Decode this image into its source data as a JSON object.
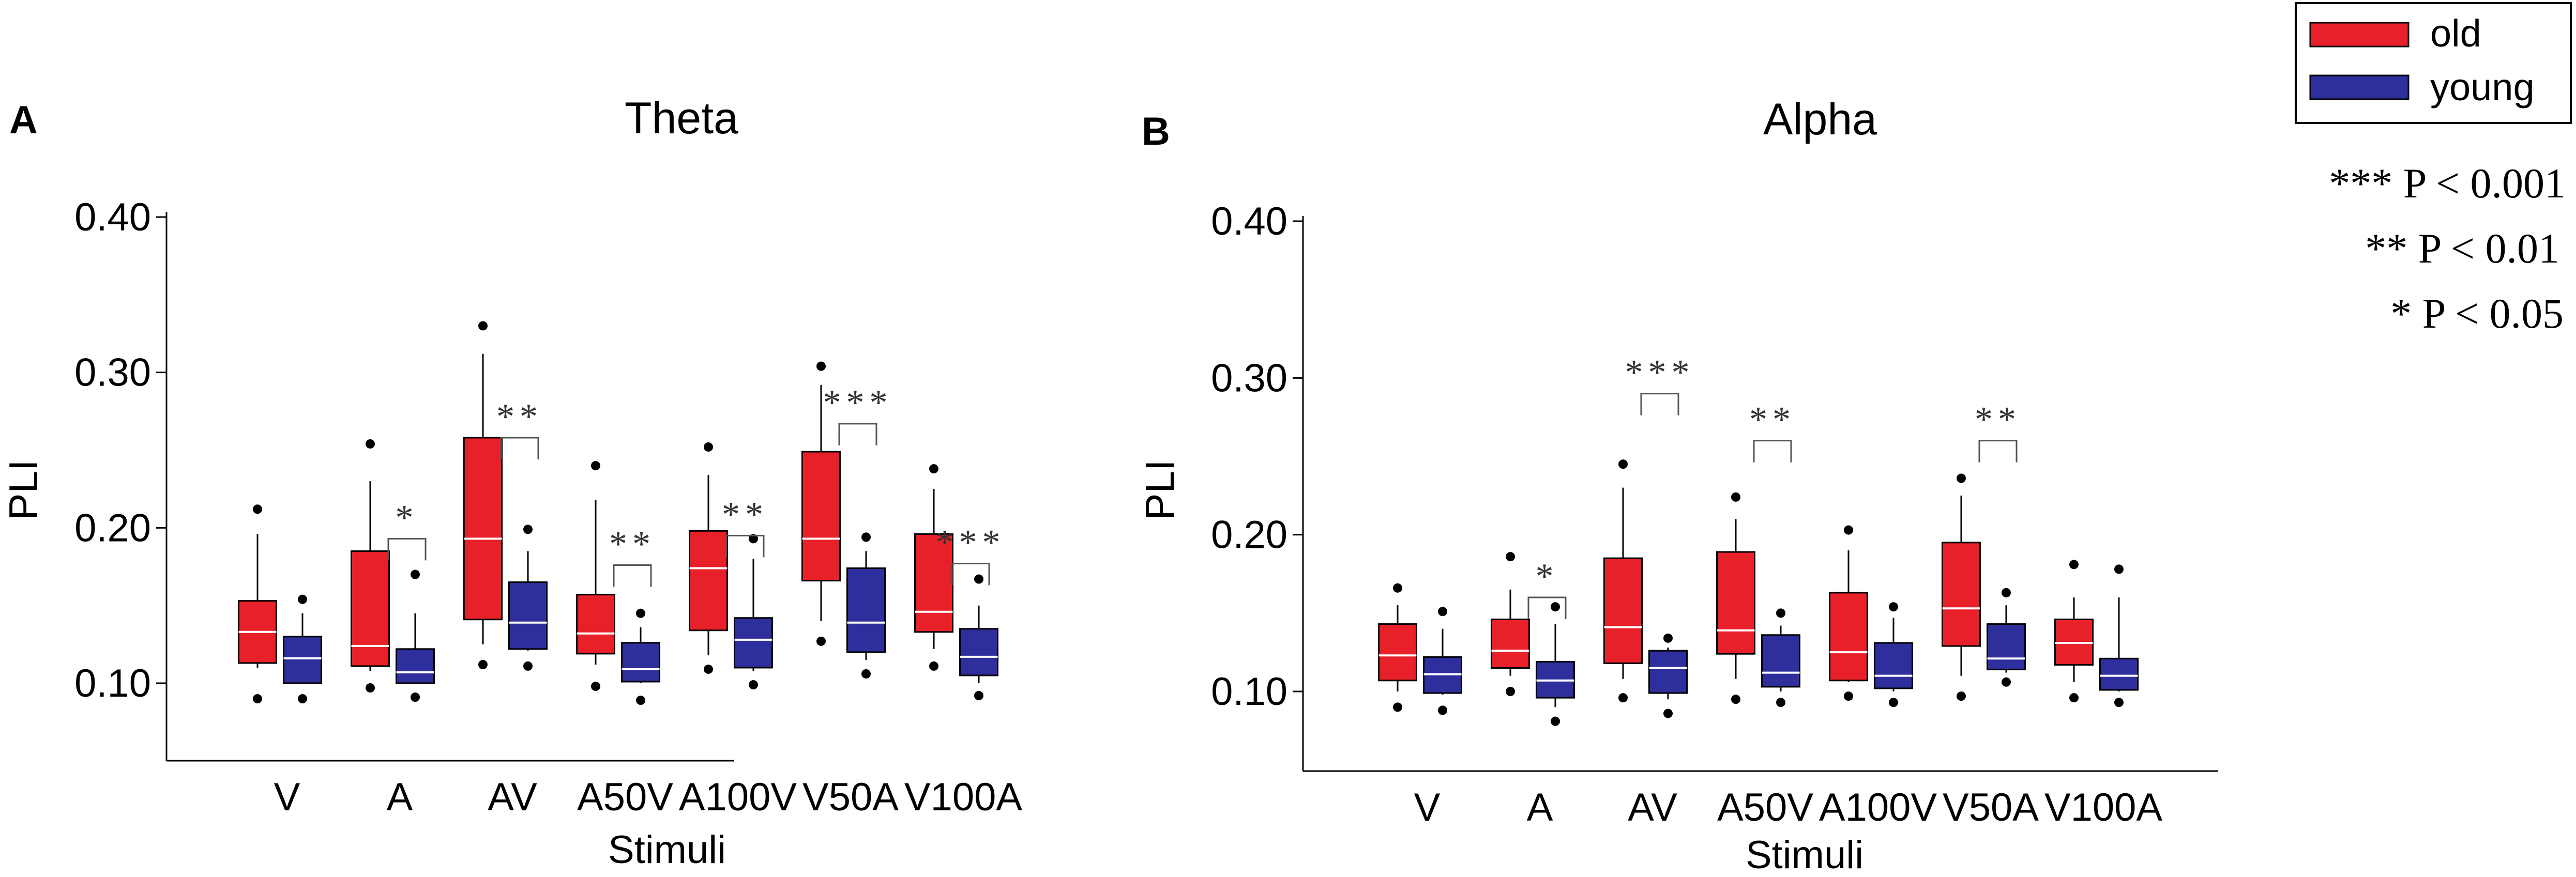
{
  "legend": {
    "entries": [
      {
        "name": "old",
        "color": "#e8202a"
      },
      {
        "name": "young",
        "color": "#2e2e9c"
      }
    ]
  },
  "significance_key": [
    "*** P < 0.001",
    "** P < 0.01",
    "* P < 0.05"
  ],
  "chart_data": [
    {
      "panel_label": "A",
      "title": "Theta",
      "type": "boxplot",
      "xlabel": "Stimuli",
      "ylabel": "PLI",
      "ylim": [
        0.05,
        0.4
      ],
      "yticks": [
        "0.10",
        "0.20",
        "0.30",
        "0.40"
      ],
      "categories": [
        "V",
        "A",
        "AV",
        "A50V",
        "A100V",
        "V50A",
        "V100A"
      ],
      "series": [
        {
          "name": "old",
          "boxes": [
            {
              "whislo": 0.11,
              "q1": 0.113,
              "med": 0.133,
              "q3": 0.153,
              "whishi": 0.196,
              "outliers": [
                0.09,
                0.212
              ]
            },
            {
              "whislo": 0.108,
              "q1": 0.111,
              "med": 0.124,
              "q3": 0.185,
              "whishi": 0.23,
              "outliers": [
                0.097,
                0.254
              ]
            },
            {
              "whislo": 0.125,
              "q1": 0.141,
              "med": 0.193,
              "q3": 0.258,
              "whishi": 0.312,
              "outliers": [
                0.112,
                0.33
              ]
            },
            {
              "whislo": 0.112,
              "q1": 0.119,
              "med": 0.132,
              "q3": 0.157,
              "whishi": 0.218,
              "outliers": [
                0.098,
                0.24
              ]
            },
            {
              "whislo": 0.118,
              "q1": 0.134,
              "med": 0.174,
              "q3": 0.198,
              "whishi": 0.234,
              "outliers": [
                0.109,
                0.252
              ]
            },
            {
              "whislo": 0.14,
              "q1": 0.166,
              "med": 0.193,
              "q3": 0.249,
              "whishi": 0.292,
              "outliers": [
                0.127,
                0.304
              ]
            },
            {
              "whislo": 0.122,
              "q1": 0.133,
              "med": 0.146,
              "q3": 0.196,
              "whishi": 0.225,
              "outliers": [
                0.111,
                0.238
              ]
            }
          ]
        },
        {
          "name": "young",
          "boxes": [
            {
              "whislo": 0.1,
              "q1": 0.1,
              "med": 0.116,
              "q3": 0.13,
              "whishi": 0.145,
              "outliers": [
                0.09,
                0.154
              ]
            },
            {
              "whislo": 0.1,
              "q1": 0.1,
              "med": 0.107,
              "q3": 0.122,
              "whishi": 0.145,
              "outliers": [
                0.091,
                0.17
              ]
            },
            {
              "whislo": 0.121,
              "q1": 0.122,
              "med": 0.139,
              "q3": 0.165,
              "whishi": 0.185,
              "outliers": [
                0.111,
                0.199
              ]
            },
            {
              "whislo": 0.1,
              "q1": 0.101,
              "med": 0.109,
              "q3": 0.126,
              "whishi": 0.136,
              "outliers": [
                0.089,
                0.145
              ]
            },
            {
              "whislo": 0.108,
              "q1": 0.11,
              "med": 0.128,
              "q3": 0.142,
              "whishi": 0.18,
              "outliers": [
                0.099,
                0.193
              ]
            },
            {
              "whislo": 0.115,
              "q1": 0.12,
              "med": 0.139,
              "q3": 0.174,
              "whishi": 0.185,
              "outliers": [
                0.106,
                0.194
              ]
            },
            {
              "whislo": 0.1,
              "q1": 0.105,
              "med": 0.117,
              "q3": 0.135,
              "whishi": 0.15,
              "outliers": [
                0.092,
                0.167
              ]
            }
          ]
        }
      ],
      "annotations": [
        {
          "category": "A",
          "label": "*",
          "y": 0.193
        },
        {
          "category": "AV",
          "label": "**",
          "y": 0.258
        },
        {
          "category": "A50V",
          "label": "**",
          "y": 0.176
        },
        {
          "category": "A100V",
          "label": "**",
          "y": 0.195
        },
        {
          "category": "V50A",
          "label": "***",
          "y": 0.267
        },
        {
          "category": "V100A",
          "label": "***",
          "y": 0.177
        }
      ]
    },
    {
      "panel_label": "B",
      "title": "Alpha",
      "type": "boxplot",
      "xlabel": "Stimuli",
      "ylabel": "PLI",
      "ylim": [
        0.05,
        0.4
      ],
      "yticks": [
        "0.10",
        "0.20",
        "0.30",
        "0.40"
      ],
      "categories": [
        "V",
        "A",
        "AV",
        "A50V",
        "A100V",
        "V50A",
        "V100A"
      ],
      "series": [
        {
          "name": "old",
          "boxes": [
            {
              "whislo": 0.1,
              "q1": 0.107,
              "med": 0.123,
              "q3": 0.143,
              "whishi": 0.155,
              "outliers": [
                0.09,
                0.166
              ]
            },
            {
              "whislo": 0.11,
              "q1": 0.115,
              "med": 0.126,
              "q3": 0.146,
              "whishi": 0.165,
              "outliers": [
                0.1,
                0.186
              ]
            },
            {
              "whislo": 0.108,
              "q1": 0.118,
              "med": 0.141,
              "q3": 0.185,
              "whishi": 0.23,
              "outliers": [
                0.096,
                0.245
              ]
            },
            {
              "whislo": 0.108,
              "q1": 0.124,
              "med": 0.139,
              "q3": 0.189,
              "whishi": 0.21,
              "outliers": [
                0.095,
                0.224
              ]
            },
            {
              "whislo": 0.106,
              "q1": 0.107,
              "med": 0.125,
              "q3": 0.163,
              "whishi": 0.19,
              "outliers": [
                0.097,
                0.203
              ]
            },
            {
              "whislo": 0.11,
              "q1": 0.129,
              "med": 0.153,
              "q3": 0.195,
              "whishi": 0.225,
              "outliers": [
                0.097,
                0.236
              ]
            },
            {
              "whislo": 0.106,
              "q1": 0.117,
              "med": 0.131,
              "q3": 0.146,
              "whishi": 0.16,
              "outliers": [
                0.096,
                0.181
              ]
            }
          ]
        },
        {
          "name": "young",
          "boxes": [
            {
              "whislo": 0.098,
              "q1": 0.099,
              "med": 0.111,
              "q3": 0.122,
              "whishi": 0.14,
              "outliers": [
                0.088,
                0.151
              ]
            },
            {
              "whislo": 0.09,
              "q1": 0.096,
              "med": 0.107,
              "q3": 0.119,
              "whishi": 0.143,
              "outliers": [
                0.081,
                0.154
              ]
            },
            {
              "whislo": 0.095,
              "q1": 0.099,
              "med": 0.115,
              "q3": 0.126,
              "whishi": 0.128,
              "outliers": [
                0.086,
                0.134
              ]
            },
            {
              "whislo": 0.1,
              "q1": 0.103,
              "med": 0.112,
              "q3": 0.136,
              "whishi": 0.142,
              "outliers": [
                0.093,
                0.15
              ]
            },
            {
              "whislo": 0.1,
              "q1": 0.102,
              "med": 0.11,
              "q3": 0.131,
              "whishi": 0.147,
              "outliers": [
                0.093,
                0.154
              ]
            },
            {
              "whislo": 0.112,
              "q1": 0.114,
              "med": 0.121,
              "q3": 0.143,
              "whishi": 0.155,
              "outliers": [
                0.106,
                0.163
              ]
            },
            {
              "whislo": 0.1,
              "q1": 0.101,
              "med": 0.11,
              "q3": 0.121,
              "whishi": 0.16,
              "outliers": [
                0.093,
                0.178
              ]
            }
          ]
        }
      ],
      "annotations": [
        {
          "category": "A",
          "label": "*",
          "y": 0.16
        },
        {
          "category": "AV",
          "label": "***",
          "y": 0.29
        },
        {
          "category": "A50V",
          "label": "**",
          "y": 0.26
        },
        {
          "category": "V50A",
          "label": "**",
          "y": 0.26
        }
      ]
    }
  ]
}
